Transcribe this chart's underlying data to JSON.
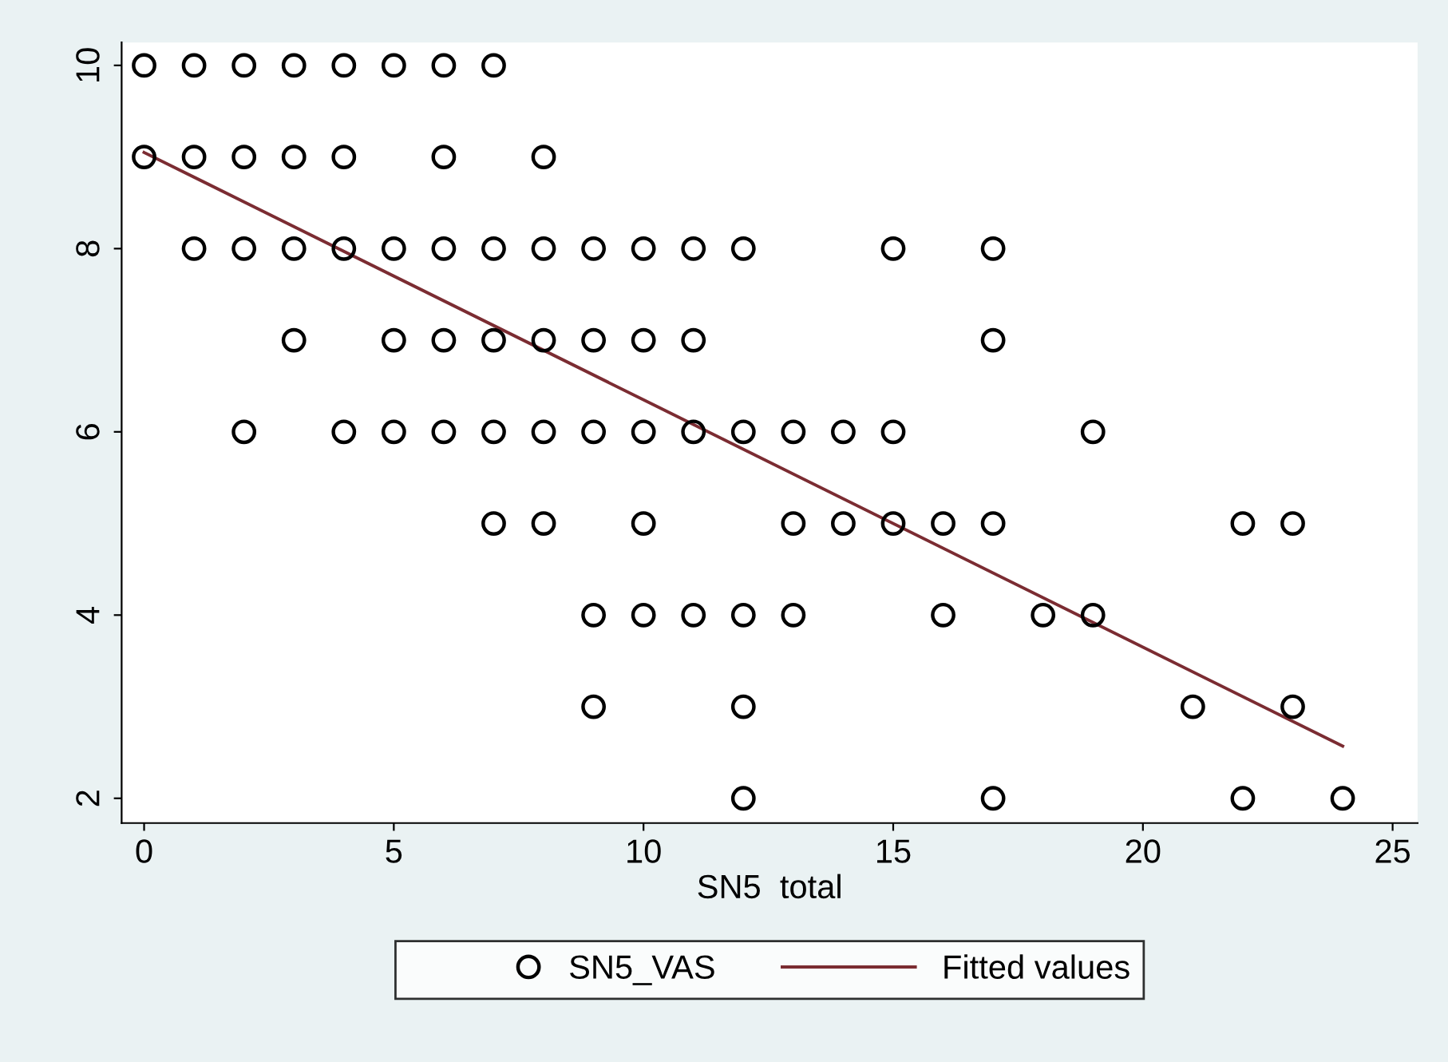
{
  "chart_data": {
    "type": "scatter",
    "xlabel": "SN5  total",
    "xlim": [
      -0.45,
      25.5
    ],
    "ylim": [
      1.73,
      10.25
    ],
    "xticks": [
      0,
      5,
      10,
      15,
      20,
      25
    ],
    "yticks": [
      2,
      4,
      6,
      8,
      10
    ],
    "grid": false,
    "legend": "bottom",
    "series": [
      {
        "name": "SN5_VAS",
        "marker": "circle",
        "color": "#000000",
        "x": [
          0,
          1,
          2,
          3,
          4,
          5,
          6,
          7,
          0,
          1,
          2,
          3,
          4,
          6,
          8,
          1,
          2,
          3,
          4,
          5,
          6,
          7,
          8,
          9,
          10,
          11,
          12,
          15,
          17,
          3,
          5,
          6,
          7,
          8,
          9,
          10,
          11,
          17,
          2,
          4,
          5,
          6,
          7,
          8,
          9,
          10,
          11,
          12,
          13,
          14,
          15,
          19,
          7,
          8,
          10,
          13,
          14,
          15,
          16,
          17,
          22,
          23,
          9,
          10,
          11,
          12,
          13,
          16,
          18,
          19,
          9,
          12,
          21,
          23,
          12,
          17,
          22,
          24
        ],
        "values": [
          10,
          10,
          10,
          10,
          10,
          10,
          10,
          10,
          9,
          9,
          9,
          9,
          9,
          9,
          9,
          8,
          8,
          8,
          8,
          8,
          8,
          8,
          8,
          8,
          8,
          8,
          8,
          8,
          8,
          7,
          7,
          7,
          7,
          7,
          7,
          7,
          7,
          7,
          6,
          6,
          6,
          6,
          6,
          6,
          6,
          6,
          6,
          6,
          6,
          6,
          6,
          6,
          5,
          5,
          5,
          5,
          5,
          5,
          5,
          5,
          5,
          5,
          4,
          4,
          4,
          4,
          4,
          4,
          4,
          4,
          3,
          3,
          3,
          3,
          2,
          2,
          2,
          2
        ]
      },
      {
        "name": "Fitted values",
        "type": "line",
        "color": "#7b2c32",
        "x": [
          0,
          24
        ],
        "values": [
          9.05,
          2.57
        ]
      }
    ]
  }
}
